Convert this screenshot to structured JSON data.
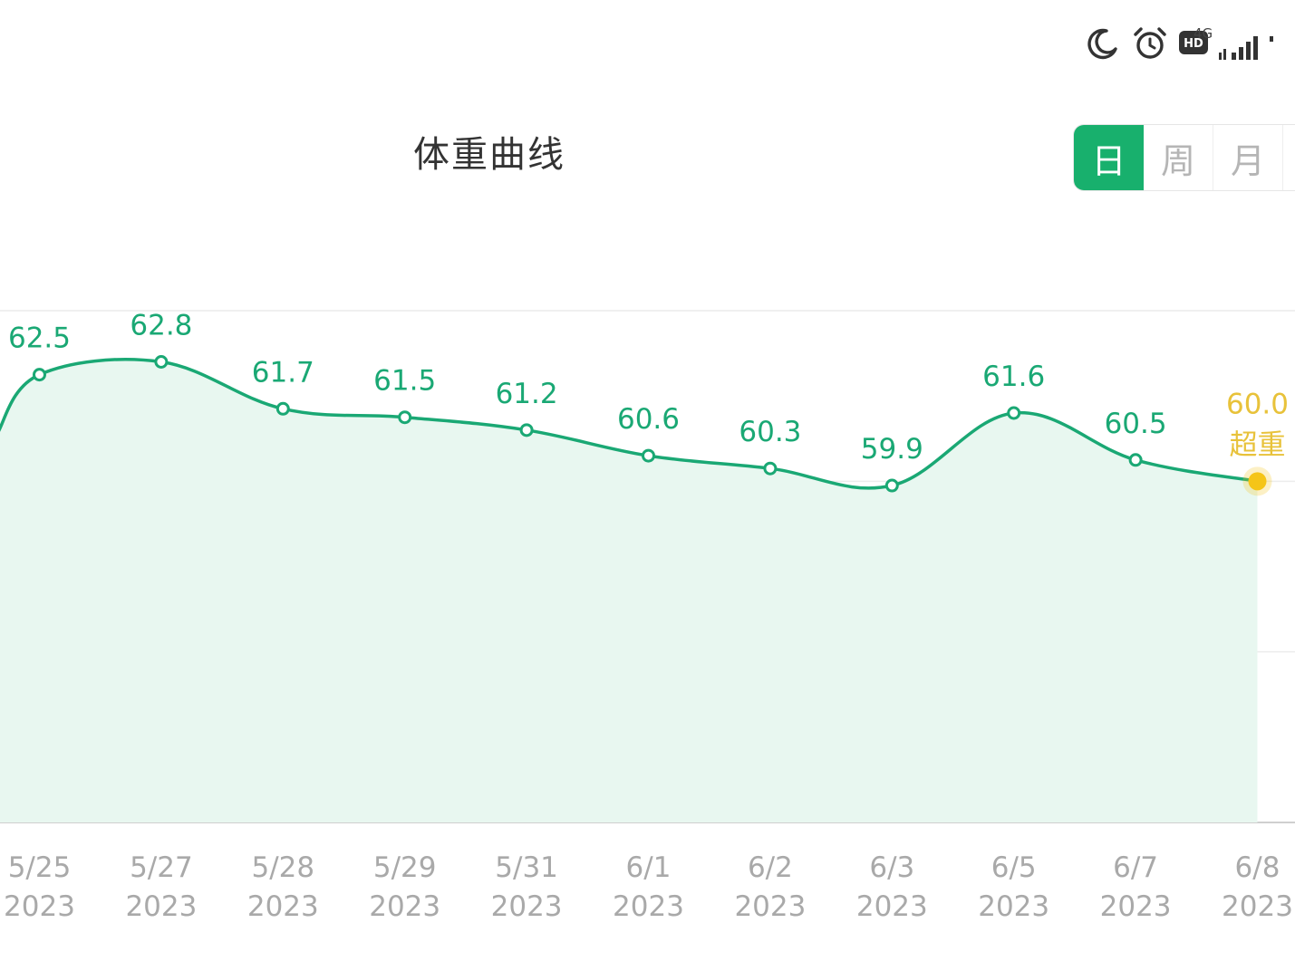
{
  "status_bar": {
    "icons": [
      "moon-icon",
      "alarm-icon",
      "hd-icon",
      "signal-icon"
    ],
    "hd_label": "HD",
    "network_label": "4G"
  },
  "header": {
    "title": "体重曲线",
    "period_tabs": [
      {
        "label": "日",
        "active": true
      },
      {
        "label": "周",
        "active": false
      },
      {
        "label": "月",
        "active": false
      }
    ]
  },
  "colors": {
    "accent": "#18b06d",
    "line": "#1aa874",
    "area": "#e8f7f0",
    "highlight": "#f5c518",
    "highlight_text": "#e8c23a",
    "axis_text": "#a9a9a9"
  },
  "chart_data": {
    "type": "area",
    "categories": [
      "5/25",
      "5/27",
      "5/28",
      "5/29",
      "5/31",
      "6/1",
      "6/2",
      "6/3",
      "6/5",
      "6/7",
      "6/8"
    ],
    "category_years": [
      "2023",
      "2023",
      "2023",
      "2023",
      "2023",
      "2023",
      "2023",
      "2023",
      "2023",
      "2023",
      "2023"
    ],
    "values": [
      62.5,
      62.8,
      61.7,
      61.5,
      61.2,
      60.6,
      60.3,
      59.9,
      61.6,
      60.5,
      60.0
    ],
    "labels": [
      "62.5",
      "62.8",
      "61.7",
      "61.5",
      "61.2",
      "60.6",
      "60.3",
      "59.9",
      "61.6",
      "60.5",
      "60.0"
    ],
    "highlight_index": 10,
    "highlight_status": "超重",
    "ylim": [
      52,
      64
    ],
    "gridline_values": [
      52,
      56,
      60,
      64
    ],
    "grid": true,
    "legend": false
  }
}
